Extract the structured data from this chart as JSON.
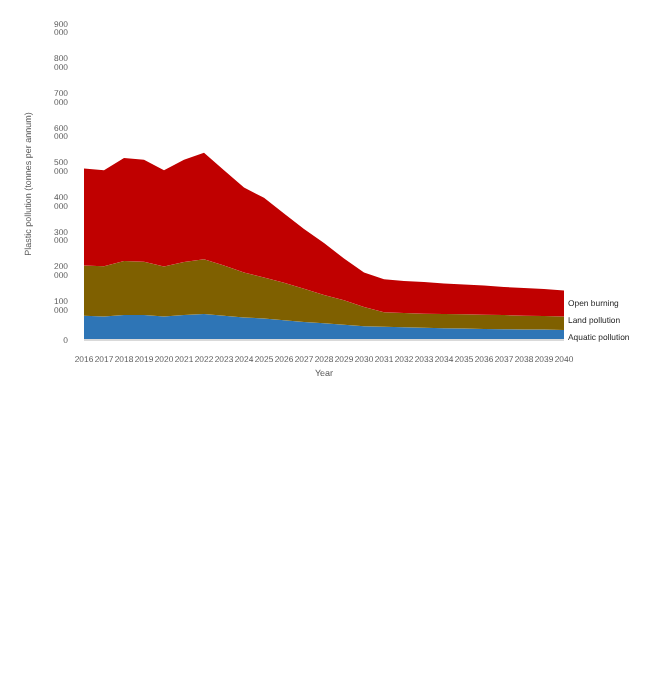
{
  "chart_data": {
    "type": "area",
    "stacked": true,
    "xlabel": "Year",
    "ylabel": "Plastic pollution (tonnes per annum)",
    "categories": [
      "2016",
      "2017",
      "2018",
      "2019",
      "2020",
      "2021",
      "2022",
      "2023",
      "2024",
      "2025",
      "2026",
      "2027",
      "2028",
      "2029",
      "2030",
      "2031",
      "2032",
      "2033",
      "2034",
      "2035",
      "2036",
      "2037",
      "2038",
      "2039",
      "2040"
    ],
    "series": [
      {
        "name": "Aquatic pollution",
        "color": "#2e75b6",
        "values": [
          70000,
          68000,
          72000,
          72000,
          68000,
          72000,
          75000,
          70000,
          65000,
          62000,
          57000,
          52000,
          48000,
          44000,
          40000,
          38000,
          37000,
          35000,
          34000,
          33000,
          32000,
          31000,
          30000,
          30000,
          29000
        ]
      },
      {
        "name": "Land pollution",
        "color": "#7f6000",
        "values": [
          145000,
          145000,
          156000,
          154000,
          144000,
          153000,
          158000,
          145000,
          130000,
          118000,
          108000,
          96000,
          82000,
          71000,
          55000,
          42000,
          41000,
          41000,
          41000,
          41000,
          41000,
          41000,
          40000,
          39000,
          39000
        ]
      },
      {
        "name": "Open burning",
        "color": "#c00000",
        "values": [
          280000,
          277000,
          297000,
          294000,
          278000,
          295000,
          307000,
          275000,
          245000,
          230000,
          200000,
          172000,
          150000,
          120000,
          100000,
          95000,
          92000,
          91000,
          88000,
          86000,
          84000,
          81000,
          80000,
          78000,
          75000
        ]
      }
    ],
    "ylim": [
      0,
      900000
    ],
    "yticks": [
      {
        "value": 0,
        "label": "0"
      },
      {
        "value": 100000,
        "label": "100 000"
      },
      {
        "value": 200000,
        "label": "200 000"
      },
      {
        "value": 300000,
        "label": "300 000"
      },
      {
        "value": 400000,
        "label": "400 000"
      },
      {
        "value": 500000,
        "label": "500 000"
      },
      {
        "value": 600000,
        "label": "600 000"
      },
      {
        "value": 700000,
        "label": "700 000"
      },
      {
        "value": 800000,
        "label": "800 000"
      },
      {
        "value": 900000,
        "label": "900 000"
      }
    ],
    "grid": false,
    "legend": false
  }
}
